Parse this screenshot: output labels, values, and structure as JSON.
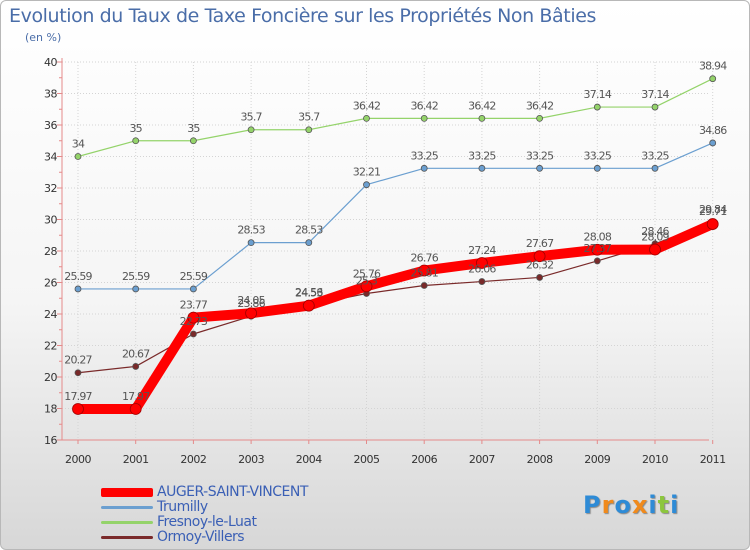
{
  "chart_data": {
    "type": "line",
    "title": "Evolution du Taux de Taxe Foncière sur les Propriétés Non Bâties",
    "ylabel": "(en %)",
    "xlabel": "",
    "ylim": [
      16,
      40
    ],
    "yticks": [
      16,
      18,
      20,
      22,
      24,
      26,
      28,
      30,
      32,
      34,
      36,
      38,
      40
    ],
    "categories": [
      "2000",
      "2001",
      "2002",
      "2003",
      "2004",
      "2005",
      "2006",
      "2007",
      "2008",
      "2009",
      "2010",
      "2011"
    ],
    "series": [
      {
        "name": "AUGER-SAINT-VINCENT",
        "color": "#ff0000",
        "values": [
          17.97,
          17.97,
          23.77,
          24.05,
          24.53,
          25.76,
          26.76,
          27.24,
          27.67,
          28.08,
          28.09,
          29.71
        ],
        "labels": [
          "17.97",
          "17.97",
          "23.77",
          "24.05",
          "24.53",
          "25.76",
          "26.76",
          "27.24",
          "27.67",
          "28.08",
          "28.09",
          "29.71"
        ]
      },
      {
        "name": "Trumilly",
        "color": "#6b9fd0",
        "values": [
          25.59,
          25.59,
          25.59,
          28.53,
          28.53,
          32.21,
          33.25,
          33.25,
          33.25,
          33.25,
          33.25,
          34.86
        ],
        "labels": [
          "25.59",
          "25.59",
          "25.59",
          "28.53",
          "28.53",
          "32.21",
          "33.25",
          "33.25",
          "33.25",
          "33.25",
          "33.25",
          "34.86"
        ]
      },
      {
        "name": "Fresnoy-le-Luat",
        "color": "#94d36a",
        "values": [
          34,
          35,
          35,
          35.7,
          35.7,
          36.42,
          36.42,
          36.42,
          36.42,
          37.14,
          37.14,
          38.94
        ],
        "labels": [
          "34",
          "35",
          "35",
          "35.7",
          "35.7",
          "36.42",
          "36.42",
          "36.42",
          "36.42",
          "37.14",
          "37.14",
          "38.94"
        ]
      },
      {
        "name": "Ormoy-Villers",
        "color": "#7a2a2a",
        "values": [
          20.27,
          20.67,
          22.73,
          23.86,
          24.56,
          25.3,
          25.81,
          26.06,
          26.32,
          27.37,
          28.46,
          29.84
        ],
        "labels": [
          "20.27",
          "20.67",
          "22.73",
          "23.86",
          "24.56",
          "25.3",
          "25.81",
          "26.06",
          "26.32",
          "27.37",
          "28.46",
          "29.84"
        ]
      }
    ]
  },
  "legend": {
    "items": [
      {
        "label": "AUGER-SAINT-VINCENT",
        "color": "#ff0000"
      },
      {
        "label": "Trumilly",
        "color": "#6b9fd0"
      },
      {
        "label": "Fresnoy-le-Luat",
        "color": "#94d36a"
      },
      {
        "label": "Ormoy-Villers",
        "color": "#7a2a2a"
      }
    ]
  },
  "brand": {
    "letters": [
      "P",
      "r",
      "o",
      "x",
      "i",
      "t",
      "i"
    ],
    "colors": [
      "#2e8bd6",
      "#f08a1c",
      "#2e8bd6",
      "#f08a1c",
      "#2e8bd6",
      "#8cc63e",
      "#2e8bd6"
    ]
  }
}
